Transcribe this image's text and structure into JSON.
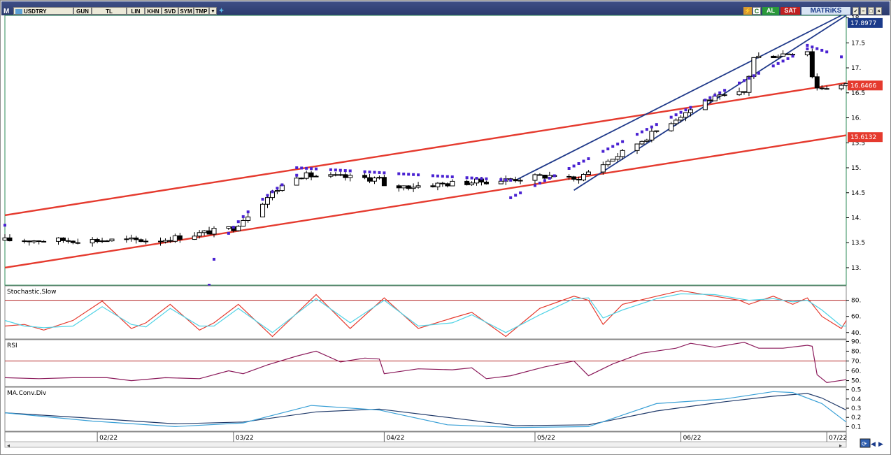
{
  "toolbar": {
    "logo": "M",
    "symbol": "USDTRY",
    "period": "GUN",
    "currency": "TL",
    "buttons": [
      "LIN",
      "KHN",
      "SVD",
      "SYM",
      "TMP"
    ],
    "al_label": "AL",
    "sat_label": "SAT",
    "brand": "MATRiKS",
    "c_label": "C"
  },
  "colors": {
    "trend_red": "#e53a2e",
    "trend_blue": "#203a8a",
    "sar": "#4a22d2",
    "stoch_k": "#e53a2e",
    "stoch_d": "#4fd3e6",
    "rsi": "#8b1a5b",
    "macd": "#203a6a",
    "signal": "#3aa0d6",
    "price_box_red": "#e53a2e",
    "price_box_blue": "#1a3a8a"
  },
  "chart_data": [
    {
      "type": "candlestick",
      "title": "",
      "ylim": [
        12.65,
        18.05
      ],
      "y_ticks": [
        "13.",
        "13.5",
        "14.",
        "14.5",
        "15.",
        "15.5",
        "16.",
        "16.5",
        "17.",
        "17.5",
        "18."
      ],
      "x_ticks": [
        "02/22",
        "03/22",
        "04/22",
        "05/22",
        "06/22",
        "07/22"
      ],
      "price_labels": [
        "17.8977",
        "16.6466",
        "15.6132"
      ],
      "key_points": [
        {
          "x": "2022-01-13",
          "y": 13.55
        },
        {
          "x": "2022-02-14",
          "y": 13.55
        },
        {
          "x": "2022-03-01",
          "y": 13.8
        },
        {
          "x": "2022-03-09",
          "y": 14.5
        },
        {
          "x": "2022-03-14",
          "y": 14.85
        },
        {
          "x": "2022-03-31",
          "y": 14.78
        },
        {
          "x": "2022-04-01",
          "y": 14.6
        },
        {
          "x": "2022-04-25",
          "y": 14.75
        },
        {
          "x": "2022-05-06",
          "y": 14.85
        },
        {
          "x": "2022-05-10",
          "y": 14.75
        },
        {
          "x": "2022-05-20",
          "y": 15.3
        },
        {
          "x": "2022-05-30",
          "y": 15.93
        },
        {
          "x": "2022-06-06",
          "y": 16.35
        },
        {
          "x": "2022-06-14",
          "y": 16.5
        },
        {
          "x": "2022-06-16",
          "y": 17.2
        },
        {
          "x": "2022-06-27",
          "y": 17.35
        },
        {
          "x": "2022-06-28",
          "y": 16.85
        },
        {
          "x": "2022-06-29",
          "y": 16.6
        },
        {
          "x": "2022-07-05",
          "y": 16.65
        }
      ],
      "sar_segments": [
        {
          "x_start": "2022-01-13",
          "x_end": "2022-01-13",
          "y_start": 13.85,
          "y_end": 13.85
        },
        {
          "x_start": "2022-02-24",
          "x_end": "2022-03-14",
          "y_start": 12.65,
          "y_end": 14.85
        },
        {
          "x_start": "2022-03-14",
          "x_end": "2022-04-27",
          "y_start": 15.0,
          "y_end": 14.75
        },
        {
          "x_start": "2022-04-27",
          "x_end": "2022-06-27",
          "y_start": 14.4,
          "y_end": 17.38
        },
        {
          "x_start": "2022-06-27",
          "x_end": "2022-07-04",
          "y_start": 17.45,
          "y_end": 17.22
        }
      ],
      "trendlines": [
        {
          "name": "red_upper",
          "x1": "2022-01-13",
          "y1": 14.05,
          "x2": "2022-07-05",
          "y2": 16.7
        },
        {
          "name": "red_lower",
          "x1": "2022-01-13",
          "y1": 13.0,
          "x2": "2022-07-05",
          "y2": 15.65
        },
        {
          "name": "blue_upper",
          "x1": "2022-04-28",
          "y1": 14.75,
          "x2": "2022-07-04",
          "y2": 18.05
        },
        {
          "name": "blue_lower",
          "x1": "2022-05-10",
          "y1": 14.55,
          "x2": "2022-07-05",
          "y2": 18.05
        }
      ]
    },
    {
      "type": "line",
      "title": "Stochastic,Slow",
      "ylim": [
        32,
        97
      ],
      "y_ticks": [
        "80.",
        "60.",
        "40."
      ],
      "hline": 80,
      "series": [
        {
          "key": "k",
          "points": [
            {
              "x": "2022-01-13",
              "y": 48
            },
            {
              "x": "2022-01-17",
              "y": 50
            },
            {
              "x": "2022-01-21",
              "y": 43
            },
            {
              "x": "2022-01-27",
              "y": 55
            },
            {
              "x": "2022-02-02",
              "y": 79
            },
            {
              "x": "2022-02-08",
              "y": 45
            },
            {
              "x": "2022-02-11",
              "y": 52
            },
            {
              "x": "2022-02-16",
              "y": 75
            },
            {
              "x": "2022-02-22",
              "y": 43
            },
            {
              "x": "2022-02-25",
              "y": 52
            },
            {
              "x": "2022-03-02",
              "y": 75
            },
            {
              "x": "2022-03-09",
              "y": 35
            },
            {
              "x": "2022-03-18",
              "y": 87
            },
            {
              "x": "2022-03-25",
              "y": 45
            },
            {
              "x": "2022-04-01",
              "y": 83
            },
            {
              "x": "2022-04-08",
              "y": 45
            },
            {
              "x": "2022-04-15",
              "y": 58
            },
            {
              "x": "2022-04-19",
              "y": 65
            },
            {
              "x": "2022-04-26",
              "y": 35
            },
            {
              "x": "2022-05-03",
              "y": 70
            },
            {
              "x": "2022-05-10",
              "y": 85
            },
            {
              "x": "2022-05-13",
              "y": 80
            },
            {
              "x": "2022-05-16",
              "y": 50
            },
            {
              "x": "2022-05-20",
              "y": 75
            },
            {
              "x": "2022-05-27",
              "y": 85
            },
            {
              "x": "2022-06-01",
              "y": 92
            },
            {
              "x": "2022-06-08",
              "y": 85
            },
            {
              "x": "2022-06-13",
              "y": 80
            },
            {
              "x": "2022-06-15",
              "y": 75
            },
            {
              "x": "2022-06-20",
              "y": 85
            },
            {
              "x": "2022-06-24",
              "y": 75
            },
            {
              "x": "2022-06-27",
              "y": 83
            },
            {
              "x": "2022-06-30",
              "y": 60
            },
            {
              "x": "2022-07-04",
              "y": 45
            },
            {
              "x": "2022-07-05",
              "y": 55
            }
          ]
        },
        {
          "key": "d",
          "points": [
            {
              "x": "2022-01-13",
              "y": 55
            },
            {
              "x": "2022-01-17",
              "y": 48
            },
            {
              "x": "2022-01-21",
              "y": 46
            },
            {
              "x": "2022-01-27",
              "y": 48
            },
            {
              "x": "2022-02-02",
              "y": 72
            },
            {
              "x": "2022-02-08",
              "y": 50
            },
            {
              "x": "2022-02-11",
              "y": 47
            },
            {
              "x": "2022-02-16",
              "y": 70
            },
            {
              "x": "2022-02-22",
              "y": 48
            },
            {
              "x": "2022-02-25",
              "y": 48
            },
            {
              "x": "2022-03-02",
              "y": 70
            },
            {
              "x": "2022-03-09",
              "y": 40
            },
            {
              "x": "2022-03-18",
              "y": 82
            },
            {
              "x": "2022-03-25",
              "y": 52
            },
            {
              "x": "2022-04-01",
              "y": 80
            },
            {
              "x": "2022-04-08",
              "y": 48
            },
            {
              "x": "2022-04-15",
              "y": 52
            },
            {
              "x": "2022-04-19",
              "y": 62
            },
            {
              "x": "2022-04-26",
              "y": 40
            },
            {
              "x": "2022-05-03",
              "y": 62
            },
            {
              "x": "2022-05-10",
              "y": 82
            },
            {
              "x": "2022-05-13",
              "y": 83
            },
            {
              "x": "2022-05-16",
              "y": 58
            },
            {
              "x": "2022-05-20",
              "y": 68
            },
            {
              "x": "2022-05-27",
              "y": 82
            },
            {
              "x": "2022-06-01",
              "y": 88
            },
            {
              "x": "2022-06-08",
              "y": 87
            },
            {
              "x": "2022-06-13",
              "y": 82
            },
            {
              "x": "2022-06-15",
              "y": 80
            },
            {
              "x": "2022-06-20",
              "y": 82
            },
            {
              "x": "2022-06-24",
              "y": 78
            },
            {
              "x": "2022-06-27",
              "y": 80
            },
            {
              "x": "2022-06-30",
              "y": 68
            },
            {
              "x": "2022-07-04",
              "y": 48
            },
            {
              "x": "2022-07-05",
              "y": 48
            }
          ]
        }
      ]
    },
    {
      "type": "line",
      "title": "RSI",
      "ylim": [
        44,
        91
      ],
      "y_ticks": [
        "90.",
        "80.",
        "70.",
        "60.",
        "50."
      ],
      "hline": 70,
      "series": [
        {
          "key": "rsi",
          "points": [
            {
              "x": "2022-01-13",
              "y": 53
            },
            {
              "x": "2022-01-20",
              "y": 52
            },
            {
              "x": "2022-01-27",
              "y": 53
            },
            {
              "x": "2022-02-03",
              "y": 53
            },
            {
              "x": "2022-02-08",
              "y": 50
            },
            {
              "x": "2022-02-15",
              "y": 53
            },
            {
              "x": "2022-02-22",
              "y": 52
            },
            {
              "x": "2022-02-28",
              "y": 60
            },
            {
              "x": "2022-03-03",
              "y": 57
            },
            {
              "x": "2022-03-08",
              "y": 66
            },
            {
              "x": "2022-03-14",
              "y": 75
            },
            {
              "x": "2022-03-18",
              "y": 80
            },
            {
              "x": "2022-03-23",
              "y": 69
            },
            {
              "x": "2022-03-28",
              "y": 73
            },
            {
              "x": "2022-03-31",
              "y": 72
            },
            {
              "x": "2022-04-01",
              "y": 57
            },
            {
              "x": "2022-04-08",
              "y": 62
            },
            {
              "x": "2022-04-15",
              "y": 61
            },
            {
              "x": "2022-04-19",
              "y": 63
            },
            {
              "x": "2022-04-22",
              "y": 52
            },
            {
              "x": "2022-04-27",
              "y": 55
            },
            {
              "x": "2022-05-04",
              "y": 64
            },
            {
              "x": "2022-05-10",
              "y": 70
            },
            {
              "x": "2022-05-13",
              "y": 55
            },
            {
              "x": "2022-05-18",
              "y": 67
            },
            {
              "x": "2022-05-24",
              "y": 78
            },
            {
              "x": "2022-05-31",
              "y": 83
            },
            {
              "x": "2022-06-03",
              "y": 88
            },
            {
              "x": "2022-06-08",
              "y": 84
            },
            {
              "x": "2022-06-14",
              "y": 89
            },
            {
              "x": "2022-06-17",
              "y": 83
            },
            {
              "x": "2022-06-22",
              "y": 83
            },
            {
              "x": "2022-06-27",
              "y": 86
            },
            {
              "x": "2022-06-28",
              "y": 85
            },
            {
              "x": "2022-06-29",
              "y": 56
            },
            {
              "x": "2022-07-01",
              "y": 48
            },
            {
              "x": "2022-07-05",
              "y": 51
            }
          ]
        }
      ]
    },
    {
      "type": "line",
      "title": "MA.Conv.Div",
      "ylim": [
        0.05,
        0.52
      ],
      "y_ticks": [
        "0.5",
        "0.4",
        "0.3",
        "0.2",
        "0.1"
      ],
      "series": [
        {
          "key": "macd",
          "points": [
            {
              "x": "2022-01-13",
              "y": 0.25
            },
            {
              "x": "2022-01-31",
              "y": 0.19
            },
            {
              "x": "2022-02-17",
              "y": 0.13
            },
            {
              "x": "2022-03-03",
              "y": 0.15
            },
            {
              "x": "2022-03-18",
              "y": 0.26
            },
            {
              "x": "2022-03-31",
              "y": 0.29
            },
            {
              "x": "2022-04-14",
              "y": 0.2
            },
            {
              "x": "2022-04-28",
              "y": 0.11
            },
            {
              "x": "2022-05-13",
              "y": 0.12
            },
            {
              "x": "2022-05-27",
              "y": 0.27
            },
            {
              "x": "2022-06-10",
              "y": 0.37
            },
            {
              "x": "2022-06-20",
              "y": 0.43
            },
            {
              "x": "2022-06-27",
              "y": 0.46
            },
            {
              "x": "2022-06-30",
              "y": 0.41
            },
            {
              "x": "2022-07-05",
              "y": 0.28
            }
          ]
        },
        {
          "key": "signal",
          "points": [
            {
              "x": "2022-01-13",
              "y": 0.25
            },
            {
              "x": "2022-01-31",
              "y": 0.16
            },
            {
              "x": "2022-02-17",
              "y": 0.1
            },
            {
              "x": "2022-03-03",
              "y": 0.14
            },
            {
              "x": "2022-03-17",
              "y": 0.33
            },
            {
              "x": "2022-03-31",
              "y": 0.28
            },
            {
              "x": "2022-04-14",
              "y": 0.12
            },
            {
              "x": "2022-04-28",
              "y": 0.09
            },
            {
              "x": "2022-05-13",
              "y": 0.1
            },
            {
              "x": "2022-05-27",
              "y": 0.35
            },
            {
              "x": "2022-06-10",
              "y": 0.4
            },
            {
              "x": "2022-06-20",
              "y": 0.48
            },
            {
              "x": "2022-06-24",
              "y": 0.47
            },
            {
              "x": "2022-06-30",
              "y": 0.35
            },
            {
              "x": "2022-07-05",
              "y": 0.15
            }
          ]
        }
      ]
    }
  ]
}
